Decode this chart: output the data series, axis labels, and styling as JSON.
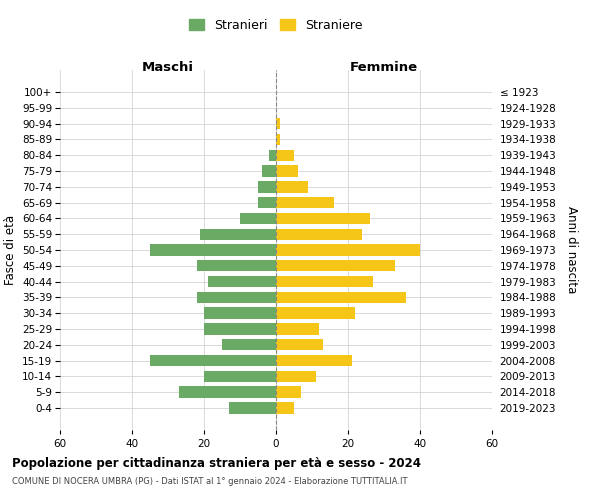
{
  "age_groups": [
    "0-4",
    "5-9",
    "10-14",
    "15-19",
    "20-24",
    "25-29",
    "30-34",
    "35-39",
    "40-44",
    "45-49",
    "50-54",
    "55-59",
    "60-64",
    "65-69",
    "70-74",
    "75-79",
    "80-84",
    "85-89",
    "90-94",
    "95-99",
    "100+"
  ],
  "birth_years": [
    "2019-2023",
    "2014-2018",
    "2009-2013",
    "2004-2008",
    "1999-2003",
    "1994-1998",
    "1989-1993",
    "1984-1988",
    "1979-1983",
    "1974-1978",
    "1969-1973",
    "1964-1968",
    "1959-1963",
    "1954-1958",
    "1949-1953",
    "1944-1948",
    "1939-1943",
    "1934-1938",
    "1929-1933",
    "1924-1928",
    "≤ 1923"
  ],
  "maschi": [
    13,
    27,
    20,
    35,
    15,
    20,
    20,
    22,
    19,
    22,
    35,
    21,
    10,
    5,
    5,
    4,
    2,
    0,
    0,
    0,
    0
  ],
  "femmine": [
    5,
    7,
    11,
    21,
    13,
    12,
    22,
    36,
    27,
    33,
    40,
    24,
    26,
    16,
    9,
    6,
    5,
    1,
    1,
    0,
    0
  ],
  "maschi_color": "#6aaa64",
  "femmine_color": "#f5c518",
  "bar_height": 0.72,
  "xlim": 60,
  "title": "Popolazione per cittadinanza straniera per età e sesso - 2024",
  "subtitle": "COMUNE DI NOCERA UMBRA (PG) - Dati ISTAT al 1° gennaio 2024 - Elaborazione TUTTITALIA.IT",
  "ylabel_left": "Fasce di età",
  "ylabel_right": "Anni di nascita",
  "xlabel_left": "Maschi",
  "xlabel_right": "Femmine",
  "legend_maschi": "Stranieri",
  "legend_femmine": "Straniere",
  "background_color": "#ffffff",
  "grid_color": "#cccccc"
}
